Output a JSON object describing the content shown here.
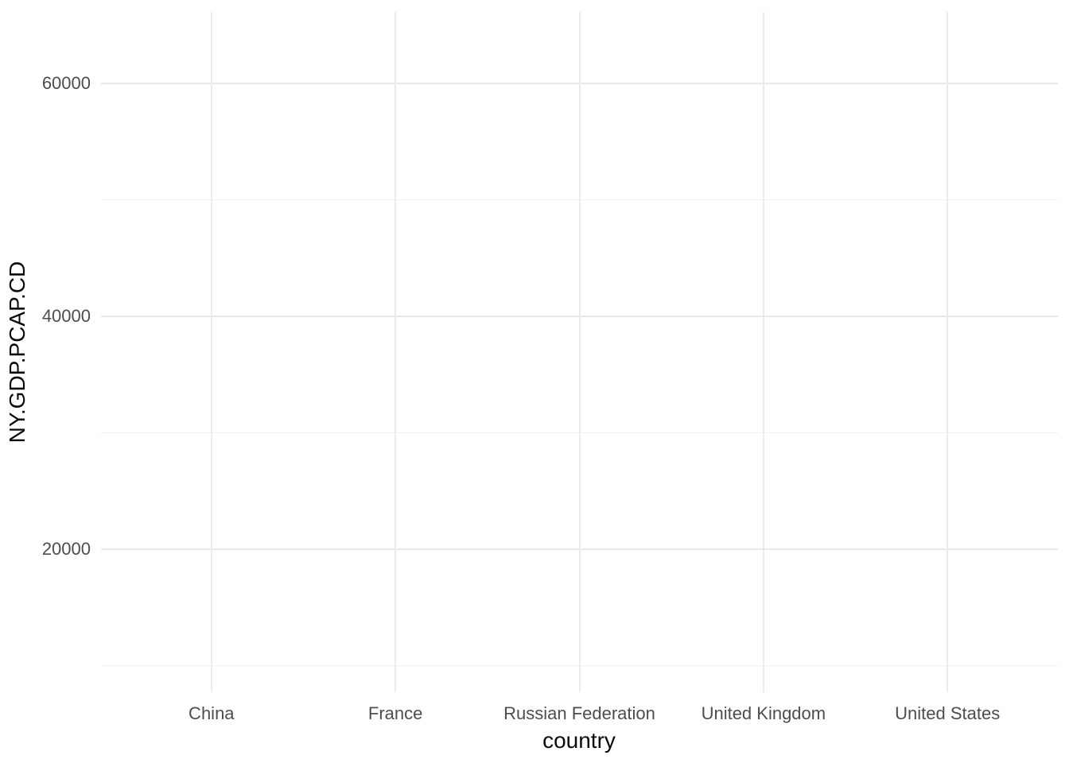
{
  "chart_data": {
    "type": "scatter",
    "title": "",
    "xlabel": "country",
    "ylabel": "NY.GDP.PCAP.CD",
    "categories": [
      "China",
      "France",
      "Russian Federation",
      "United Kingdom",
      "United States"
    ],
    "series": [],
    "y_major_ticks": [
      20000,
      40000,
      60000
    ],
    "y_minor_gridlines": [
      10000,
      30000,
      50000
    ],
    "ylim": [
      7700,
      66150
    ],
    "grid": true,
    "legend": "none"
  },
  "colors": {
    "background": "#ffffff",
    "grid_major": "#e9e9e9",
    "grid_minor": "#f1f1f1",
    "axis_text": "#4d4d4d",
    "axis_title": "#0a0a0a"
  }
}
